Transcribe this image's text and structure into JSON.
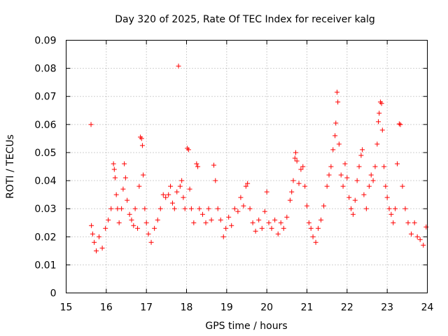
{
  "chart_data": {
    "type": "scatter",
    "title": "Day 320 of 2025, Rate Of TEC Index for receiver kalg",
    "xlabel": "GPS time / hours",
    "ylabel": "ROTI / TECUs",
    "xlim": [
      15,
      24
    ],
    "ylim": [
      0,
      0.09
    ],
    "grid": true,
    "marker": "+",
    "color": "#ff0000",
    "x_ticks": [
      15,
      16,
      17,
      18,
      19,
      20,
      21,
      22,
      23,
      24
    ],
    "x_tick_labels": [
      "15",
      "16",
      "17",
      "18",
      "19",
      "20",
      "21",
      "22",
      "23",
      "24"
    ],
    "y_ticks": [
      0,
      0.01,
      0.02,
      0.03,
      0.04,
      0.05,
      0.06,
      0.07,
      0.08,
      0.09
    ],
    "y_tick_labels": [
      "0",
      "0.01",
      "0.02",
      "0.03",
      "0.04",
      "0.05",
      "0.06",
      "0.07",
      "0.08",
      "0.09"
    ],
    "series": [
      {
        "name": "ROTI",
        "points": [
          [
            15.62,
            0.06
          ],
          [
            15.63,
            0.024
          ],
          [
            15.66,
            0.021
          ],
          [
            15.7,
            0.018
          ],
          [
            15.75,
            0.015
          ],
          [
            15.82,
            0.02
          ],
          [
            15.9,
            0.016
          ],
          [
            15.98,
            0.023
          ],
          [
            16.05,
            0.026
          ],
          [
            16.12,
            0.03
          ],
          [
            16.18,
            0.046
          ],
          [
            16.2,
            0.044
          ],
          [
            16.22,
            0.041
          ],
          [
            16.25,
            0.035
          ],
          [
            16.28,
            0.03
          ],
          [
            16.32,
            0.025
          ],
          [
            16.38,
            0.03
          ],
          [
            16.42,
            0.037
          ],
          [
            16.45,
            0.046
          ],
          [
            16.48,
            0.041
          ],
          [
            16.52,
            0.033
          ],
          [
            16.58,
            0.028
          ],
          [
            16.63,
            0.026
          ],
          [
            16.68,
            0.024
          ],
          [
            16.72,
            0.03
          ],
          [
            16.78,
            0.023
          ],
          [
            16.82,
            0.038
          ],
          [
            16.85,
            0.0555
          ],
          [
            16.88,
            0.055
          ],
          [
            16.9,
            0.0525
          ],
          [
            16.92,
            0.042
          ],
          [
            16.96,
            0.03
          ],
          [
            17.0,
            0.025
          ],
          [
            17.05,
            0.021
          ],
          [
            17.12,
            0.018
          ],
          [
            17.2,
            0.023
          ],
          [
            17.28,
            0.026
          ],
          [
            17.35,
            0.03
          ],
          [
            17.42,
            0.035
          ],
          [
            17.48,
            0.034
          ],
          [
            17.55,
            0.035
          ],
          [
            17.6,
            0.038
          ],
          [
            17.65,
            0.032
          ],
          [
            17.7,
            0.03
          ],
          [
            17.76,
            0.036
          ],
          [
            17.8,
            0.0808
          ],
          [
            17.84,
            0.038
          ],
          [
            17.88,
            0.04
          ],
          [
            17.92,
            0.034
          ],
          [
            17.96,
            0.03
          ],
          [
            18.02,
            0.0515
          ],
          [
            18.05,
            0.051
          ],
          [
            18.08,
            0.037
          ],
          [
            18.12,
            0.03
          ],
          [
            18.18,
            0.025
          ],
          [
            18.25,
            0.046
          ],
          [
            18.28,
            0.045
          ],
          [
            18.32,
            0.03
          ],
          [
            18.4,
            0.028
          ],
          [
            18.48,
            0.025
          ],
          [
            18.55,
            0.03
          ],
          [
            18.62,
            0.026
          ],
          [
            18.68,
            0.0455
          ],
          [
            18.72,
            0.04
          ],
          [
            18.78,
            0.03
          ],
          [
            18.85,
            0.026
          ],
          [
            18.92,
            0.02
          ],
          [
            18.98,
            0.023
          ],
          [
            19.05,
            0.027
          ],
          [
            19.12,
            0.024
          ],
          [
            19.2,
            0.03
          ],
          [
            19.28,
            0.029
          ],
          [
            19.35,
            0.034
          ],
          [
            19.42,
            0.031
          ],
          [
            19.48,
            0.038
          ],
          [
            19.52,
            0.039
          ],
          [
            19.58,
            0.03
          ],
          [
            19.65,
            0.025
          ],
          [
            19.72,
            0.022
          ],
          [
            19.8,
            0.026
          ],
          [
            19.88,
            0.023
          ],
          [
            19.95,
            0.029
          ],
          [
            20.0,
            0.036
          ],
          [
            20.05,
            0.025
          ],
          [
            20.12,
            0.023
          ],
          [
            20.2,
            0.026
          ],
          [
            20.28,
            0.021
          ],
          [
            20.35,
            0.025
          ],
          [
            20.42,
            0.023
          ],
          [
            20.5,
            0.027
          ],
          [
            20.58,
            0.033
          ],
          [
            20.62,
            0.036
          ],
          [
            20.66,
            0.04
          ],
          [
            20.7,
            0.048
          ],
          [
            20.72,
            0.05
          ],
          [
            20.75,
            0.047
          ],
          [
            20.8,
            0.039
          ],
          [
            20.85,
            0.044
          ],
          [
            20.9,
            0.045
          ],
          [
            20.95,
            0.038
          ],
          [
            21.0,
            0.031
          ],
          [
            21.05,
            0.025
          ],
          [
            21.1,
            0.023
          ],
          [
            21.15,
            0.02
          ],
          [
            21.22,
            0.018
          ],
          [
            21.28,
            0.023
          ],
          [
            21.35,
            0.026
          ],
          [
            21.42,
            0.031
          ],
          [
            21.5,
            0.038
          ],
          [
            21.55,
            0.042
          ],
          [
            21.6,
            0.045
          ],
          [
            21.65,
            0.051
          ],
          [
            21.7,
            0.056
          ],
          [
            21.72,
            0.0605
          ],
          [
            21.75,
            0.0715
          ],
          [
            21.77,
            0.068
          ],
          [
            21.8,
            0.053
          ],
          [
            21.85,
            0.042
          ],
          [
            21.9,
            0.038
          ],
          [
            21.95,
            0.046
          ],
          [
            22.0,
            0.041
          ],
          [
            22.05,
            0.034
          ],
          [
            22.1,
            0.03
          ],
          [
            22.15,
            0.028
          ],
          [
            22.2,
            0.033
          ],
          [
            22.25,
            0.04
          ],
          [
            22.3,
            0.045
          ],
          [
            22.35,
            0.049
          ],
          [
            22.38,
            0.051
          ],
          [
            22.42,
            0.035
          ],
          [
            22.48,
            0.03
          ],
          [
            22.55,
            0.038
          ],
          [
            22.6,
            0.042
          ],
          [
            22.65,
            0.04
          ],
          [
            22.7,
            0.045
          ],
          [
            22.75,
            0.053
          ],
          [
            22.78,
            0.061
          ],
          [
            22.8,
            0.064
          ],
          [
            22.83,
            0.068
          ],
          [
            22.86,
            0.0675
          ],
          [
            22.88,
            0.058
          ],
          [
            22.92,
            0.045
          ],
          [
            22.96,
            0.038
          ],
          [
            23.0,
            0.034
          ],
          [
            23.05,
            0.03
          ],
          [
            23.1,
            0.028
          ],
          [
            23.15,
            0.025
          ],
          [
            23.2,
            0.03
          ],
          [
            23.25,
            0.046
          ],
          [
            23.3,
            0.0602
          ],
          [
            23.33,
            0.06
          ],
          [
            23.38,
            0.038
          ],
          [
            23.45,
            0.03
          ],
          [
            23.52,
            0.025
          ],
          [
            23.6,
            0.021
          ],
          [
            23.68,
            0.025
          ],
          [
            23.75,
            0.02
          ],
          [
            23.82,
            0.019
          ],
          [
            23.9,
            0.017
          ],
          [
            23.97,
            0.0235
          ]
        ]
      }
    ]
  }
}
